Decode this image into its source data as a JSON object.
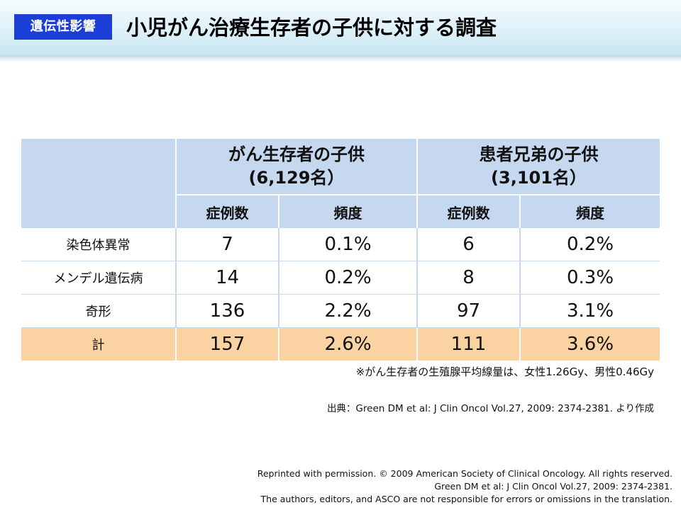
{
  "header": {
    "badge": "遺伝性影響",
    "title": "小児がん治療生存者の子供に対する調査"
  },
  "table": {
    "groups": [
      {
        "line1": "がん生存者の子供",
        "line2": "(6,129名）"
      },
      {
        "line1": "患者兄弟の子供",
        "line2": "(3,101名）"
      }
    ],
    "subheaders": [
      "症例数",
      "頻度",
      "症例数",
      "頻度"
    ],
    "rows": [
      {
        "label": "染色体異常",
        "values": [
          "7",
          "0.1%",
          "6",
          "0.2%"
        ]
      },
      {
        "label": "メンデル遺伝病",
        "values": [
          "14",
          "0.2%",
          "8",
          "0.3%"
        ]
      },
      {
        "label": "奇形",
        "values": [
          "136",
          "2.2%",
          "97",
          "3.1%"
        ]
      },
      {
        "label": "計",
        "values": [
          "157",
          "2.6%",
          "111",
          "3.6%"
        ]
      }
    ]
  },
  "note": "※がん生存者の生殖腺平均線量は、女性1.26Gy、男性0.46Gy",
  "source": "出典：Green DM et al: J Clin Oncol Vol.27, 2009: 2374-2381. より作成",
  "credits": [
    "Reprinted with permission. © 2009 American Society of Clinical Oncology. All rights reserved.",
    "Green DM et al: J Clin Oncol Vol.27,  2009: 2374-2381.",
    "The authors, editors, and ASCO are not responsible for errors or omissions in the translation."
  ],
  "colors": {
    "badge": "#1b3fd6",
    "table_header": "#c5d8ef",
    "total_row": "#fbd3a3"
  }
}
